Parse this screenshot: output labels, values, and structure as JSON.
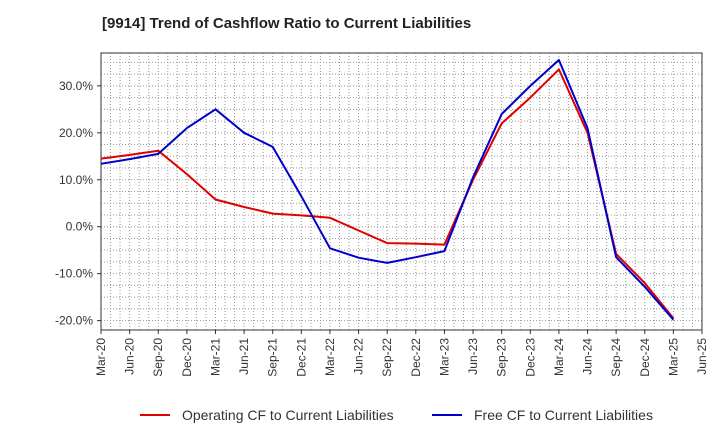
{
  "chart_data": {
    "type": "line",
    "title": "[9914]  Trend of Cashflow Ratio to Current Liabilities",
    "xlabel": "",
    "ylabel": "",
    "x": [
      "Mar-20",
      "Jun-20",
      "Sep-20",
      "Dec-20",
      "Mar-21",
      "Jun-21",
      "Sep-21",
      "Dec-21",
      "Mar-22",
      "Jun-22",
      "Sep-22",
      "Dec-22",
      "Mar-23",
      "Jun-23",
      "Sep-23",
      "Dec-23",
      "Mar-24",
      "Jun-24",
      "Sep-24",
      "Dec-24",
      "Mar-25",
      "Jun-25"
    ],
    "ytick_values": [
      -20,
      -10,
      0,
      10,
      20,
      30
    ],
    "ytick_labels": [
      "-20.0%",
      "-10.0%",
      "0.0%",
      "10.0%",
      "20.0%",
      "30.0%"
    ],
    "ylim": [
      -22,
      37
    ],
    "grid": true,
    "legend_position": "bottom",
    "series": [
      {
        "name": "Operating CF to Current Liabilities",
        "color": "#e00000",
        "values": [
          14.5,
          15.3,
          16.2,
          11.2,
          5.8,
          4.2,
          2.8,
          2.4,
          1.9,
          -0.8,
          -3.5,
          -3.6,
          -3.8,
          10.0,
          22.0,
          27.5,
          33.5,
          20.0,
          -5.8,
          -12.0,
          -19.5,
          null
        ]
      },
      {
        "name": "Free CF to Current Liabilities",
        "color": "#0000cc",
        "values": [
          13.4,
          14.4,
          15.5,
          21.0,
          25.0,
          20.0,
          17.0,
          6.5,
          -4.6,
          -6.6,
          -7.7,
          -6.5,
          -5.2,
          10.5,
          24.0,
          30.0,
          35.5,
          21.0,
          -6.5,
          -12.8,
          -19.8,
          null
        ]
      }
    ]
  }
}
